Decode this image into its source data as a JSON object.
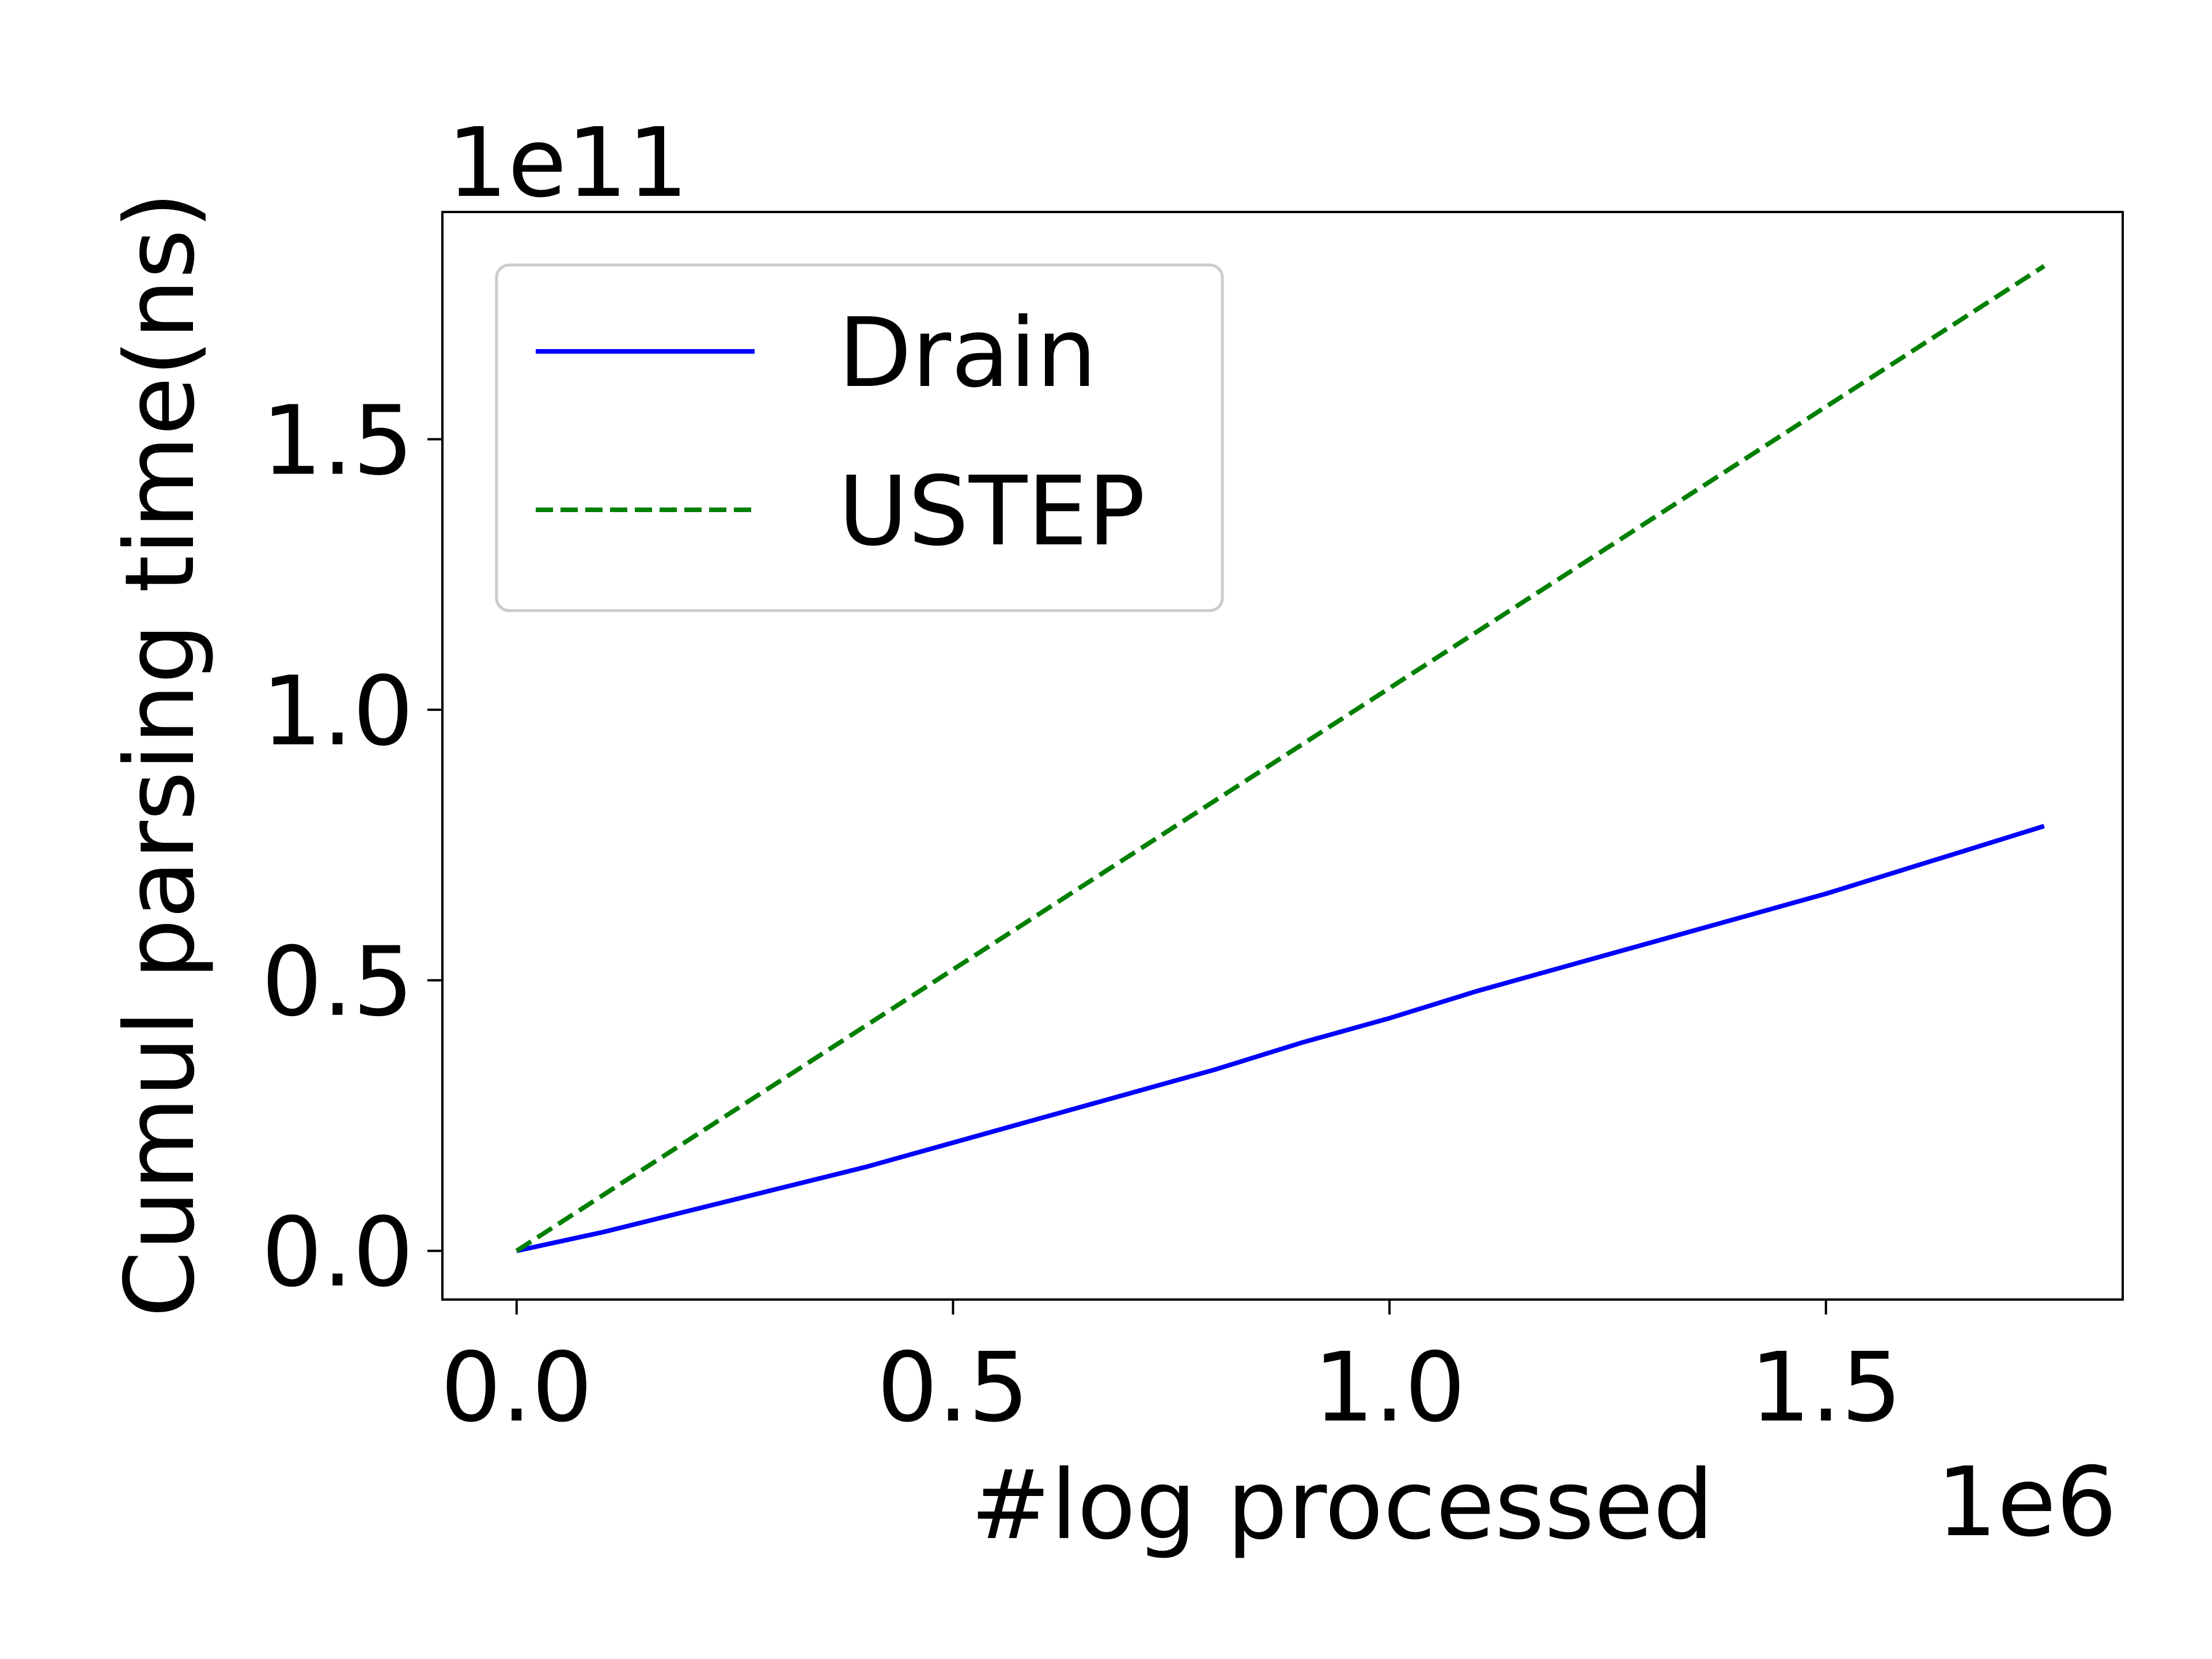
{
  "chart_data": {
    "type": "line",
    "title": "",
    "xlabel": "#log processed",
    "ylabel": "Cumul parsing time(ns)",
    "x_offset_label": "1e6",
    "y_offset_label": "1e11",
    "xlim": [
      -0.085,
      1.84
    ],
    "ylim": [
      -0.09,
      1.92
    ],
    "xticks": [
      0.0,
      0.5,
      1.0,
      1.5
    ],
    "xtick_labels": [
      "0.0",
      "0.5",
      "1.0",
      "1.5"
    ],
    "yticks": [
      0.0,
      0.5,
      1.0,
      1.5
    ],
    "ytick_labels": [
      "0.0",
      "0.5",
      "1.0",
      "1.5"
    ],
    "grid": false,
    "legend_position": "upper-left",
    "series": [
      {
        "name": "Drain",
        "color": "#0000ff",
        "style": "solid",
        "x": [
          0.0,
          0.1,
          0.2,
          0.3,
          0.4,
          0.5,
          0.6,
          0.7,
          0.8,
          0.9,
          1.0,
          1.1,
          1.2,
          1.3,
          1.4,
          1.5,
          1.6,
          1.7,
          1.75
        ],
        "y": [
          0.0,
          0.035,
          0.075,
          0.115,
          0.155,
          0.2,
          0.245,
          0.29,
          0.335,
          0.385,
          0.43,
          0.48,
          0.525,
          0.57,
          0.615,
          0.66,
          0.71,
          0.76,
          0.785
        ]
      },
      {
        "name": "USTEP",
        "color": "#008000",
        "style": "dashed",
        "x": [
          0.0,
          0.25,
          0.5,
          0.75,
          1.0,
          1.25,
          1.5,
          1.75
        ],
        "y": [
          0.0,
          0.26,
          0.52,
          0.78,
          1.04,
          1.3,
          1.56,
          1.82
        ]
      }
    ]
  }
}
